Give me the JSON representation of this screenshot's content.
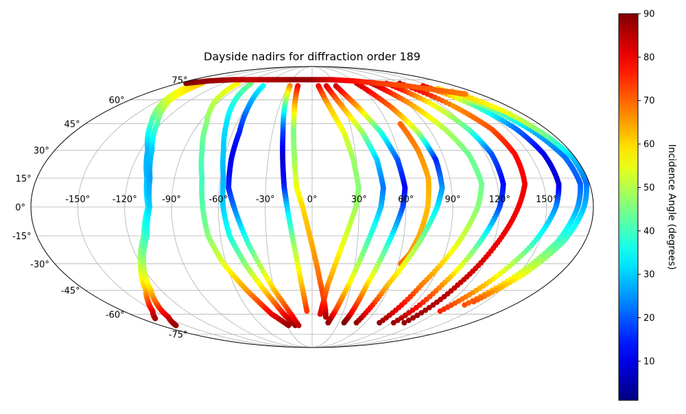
{
  "chart_data": {
    "type": "scatter",
    "projection": "mollweide",
    "title": "Dayside nadirs for diffraction order 189",
    "grid": true,
    "lon_ticks": [
      "-150°",
      "-120°",
      "-90°",
      "-60°",
      "-30°",
      "0°",
      "30°",
      "60°",
      "90°",
      "120°",
      "150°"
    ],
    "lon_tick_values": [
      -150,
      -120,
      -90,
      -60,
      -30,
      0,
      30,
      60,
      90,
      120,
      150
    ],
    "lat_ticks": [
      "75°",
      "60°",
      "45°",
      "30°",
      "15°",
      "0°",
      "-15°",
      "-30°",
      "-45°",
      "-60°",
      "-75°"
    ],
    "lat_tick_values": [
      75,
      60,
      45,
      30,
      15,
      0,
      -15,
      -30,
      -45,
      -60,
      -75
    ],
    "colorbar": {
      "label": "Incidence Angle (degrees)",
      "colormap": "jet",
      "min": 1,
      "max": 90,
      "ticks": [
        "10",
        "20",
        "30",
        "40",
        "50",
        "60",
        "70",
        "80",
        "90"
      ],
      "tick_values": [
        10,
        20,
        30,
        40,
        50,
        60,
        70,
        80,
        90
      ],
      "placement": "right"
    },
    "series": [
      {
        "lon": [
          -155,
          -145,
          -128,
          -115,
          -108,
          -105,
          -110,
          -120,
          -132,
          -142,
          -152,
          -165
        ],
        "lat": [
          70,
          60,
          45,
          30,
          15,
          0,
          -15,
          -30,
          -45,
          -52,
          -58,
          -63
        ],
        "inc": [
          60,
          52,
          40,
          28,
          28,
          33,
          40,
          50,
          62,
          72,
          80,
          86
        ]
      },
      {
        "lon": [
          -148,
          -140,
          -123,
          -112,
          -106,
          -104,
          -108,
          -118,
          -128,
          -138,
          -148,
          -162
        ],
        "lat": [
          72,
          60,
          45,
          30,
          15,
          0,
          -15,
          -30,
          -45,
          -54,
          -62,
          -68
        ],
        "inc": [
          62,
          55,
          42,
          30,
          26,
          30,
          38,
          48,
          60,
          72,
          82,
          88
        ]
      },
      {
        "lon": [
          -100,
          -95,
          -84,
          -77,
          -72,
          -70,
          -68,
          -62,
          -52,
          -40,
          -28
        ],
        "lat": [
          72,
          60,
          45,
          30,
          15,
          0,
          -15,
          -30,
          -45,
          -60,
          -68
        ],
        "inc": [
          57,
          52,
          46,
          42,
          40,
          42,
          46,
          54,
          65,
          80,
          88
        ]
      },
      {
        "lon": [
          -82,
          -76,
          -68,
          -62,
          -58,
          -57,
          -54,
          -47,
          -38,
          -28,
          -20
        ],
        "lat": [
          72,
          60,
          45,
          30,
          15,
          0,
          -15,
          -30,
          -45,
          -60,
          -68
        ],
        "inc": [
          45,
          38,
          32,
          30,
          28,
          30,
          36,
          46,
          60,
          78,
          88
        ]
      },
      {
        "lon": [
          -62,
          -58,
          -55,
          -55,
          -54,
          -50,
          -42,
          -30,
          -16
        ],
        "lat": [
          70,
          55,
          40,
          25,
          10,
          0,
          -20,
          -45,
          -68
        ],
        "inc": [
          35,
          25,
          15,
          10,
          15,
          22,
          40,
          62,
          85
        ]
      },
      {
        "lon": [
          -28,
          -25,
          -22,
          -20,
          -18,
          -16,
          -12,
          -8,
          -5
        ],
        "lat": [
          70,
          55,
          40,
          25,
          10,
          0,
          -20,
          -42,
          -58
        ],
        "inc": [
          68,
          40,
          18,
          8,
          15,
          30,
          48,
          62,
          74
        ]
      },
      {
        "lon": [
          -18,
          -16,
          -14,
          -12,
          -10,
          -6,
          0,
          6,
          12,
          14
        ],
        "lat": [
          70,
          55,
          40,
          25,
          10,
          0,
          -20,
          -40,
          -56,
          -62
        ],
        "inc": [
          80,
          62,
          45,
          48,
          55,
          60,
          64,
          70,
          78,
          86
        ]
      },
      {
        "lon": [
          8,
          16,
          24,
          28,
          30,
          28,
          20,
          12,
          8
        ],
        "lat": [
          70,
          55,
          40,
          25,
          10,
          0,
          -20,
          -42,
          -60
        ],
        "inc": [
          80,
          62,
          55,
          48,
          46,
          48,
          55,
          66,
          82
        ]
      },
      {
        "lon": [
          18,
          28,
          38,
          44,
          46,
          44,
          36,
          28,
          22,
          18
        ],
        "lat": [
          70,
          55,
          40,
          25,
          10,
          0,
          -20,
          -42,
          -58,
          -66
        ],
        "inc": [
          82,
          65,
          48,
          30,
          22,
          28,
          42,
          58,
          74,
          88
        ]
      },
      {
        "lon": [
          30,
          42,
          52,
          58,
          60,
          58,
          50,
          42,
          38,
          36
        ],
        "lat": [
          70,
          55,
          40,
          25,
          10,
          0,
          -20,
          -42,
          -60,
          -66
        ],
        "inc": [
          84,
          64,
          38,
          20,
          12,
          18,
          38,
          60,
          80,
          90
        ]
      },
      {
        "lon": [
          70,
          74,
          76,
          74,
          70,
          66,
          62
        ],
        "lat": [
          45,
          30,
          15,
          0,
          -15,
          -25,
          -30
        ],
        "inc": [
          70,
          67,
          64,
          62,
          64,
          66,
          70
        ]
      },
      {
        "lon": [
          60,
          72,
          80,
          84,
          84,
          80,
          70,
          58,
          50
        ],
        "lat": [
          72,
          55,
          40,
          25,
          10,
          0,
          -20,
          -42,
          -66
        ],
        "inc": [
          84,
          70,
          50,
          15,
          25,
          32,
          48,
          62,
          88
        ]
      },
      {
        "lon": [
          80,
          92,
          102,
          108,
          110,
          106,
          96,
          84,
          76
        ],
        "lat": [
          72,
          58,
          42,
          28,
          12,
          0,
          -20,
          -42,
          -66
        ],
        "inc": [
          86,
          66,
          50,
          44,
          44,
          46,
          54,
          68,
          88
        ]
      },
      {
        "lon": [
          100,
          112,
          120,
          124,
          124,
          120,
          110,
          100,
          92
        ],
        "lat": [
          72,
          58,
          42,
          28,
          12,
          0,
          -20,
          -42,
          -66
        ],
        "inc": [
          86,
          58,
          42,
          20,
          12,
          18,
          42,
          66,
          88
        ]
      },
      {
        "lon": [
          118,
          130,
          138,
          140,
          138,
          132,
          122,
          112,
          104
        ],
        "lat": [
          72,
          56,
          42,
          28,
          12,
          0,
          -20,
          -42,
          -66
        ],
        "inc": [
          86,
          66,
          72,
          78,
          80,
          80,
          80,
          84,
          88
        ]
      },
      {
        "lon": [
          140,
          150,
          157,
          160,
          160,
          156,
          146,
          134,
          122
        ],
        "lat": [
          70,
          56,
          42,
          28,
          12,
          0,
          -20,
          -40,
          -58
        ],
        "inc": [
          80,
          42,
          22,
          10,
          8,
          24,
          40,
          60,
          76
        ]
      },
      {
        "lon": [
          150,
          160,
          168,
          173,
          174,
          170,
          162,
          150,
          136
        ],
        "lat": [
          68,
          54,
          40,
          26,
          12,
          0,
          -18,
          -36,
          -54
        ],
        "inc": [
          60,
          45,
          28,
          22,
          20,
          26,
          40,
          54,
          72
        ]
      },
      {
        "lon": [
          158,
          168,
          174,
          178,
          178,
          174,
          166,
          154,
          140
        ],
        "lat": [
          66,
          52,
          38,
          26,
          12,
          0,
          -18,
          -36,
          -52
        ],
        "inc": [
          62,
          55,
          44,
          30,
          22,
          28,
          40,
          55,
          72
        ]
      },
      {
        "lon": [
          -170,
          -150,
          -120,
          -90,
          -60,
          -30,
          0,
          30,
          60,
          90,
          120,
          150,
          165
        ],
        "lat": [
          72,
          74,
          75,
          75,
          75,
          75,
          75,
          75,
          74,
          72,
          70,
          66,
          64
        ],
        "inc": [
          90,
          88,
          86,
          84,
          86,
          88,
          88,
          82,
          78,
          74,
          72,
          70,
          68
        ]
      }
    ]
  }
}
